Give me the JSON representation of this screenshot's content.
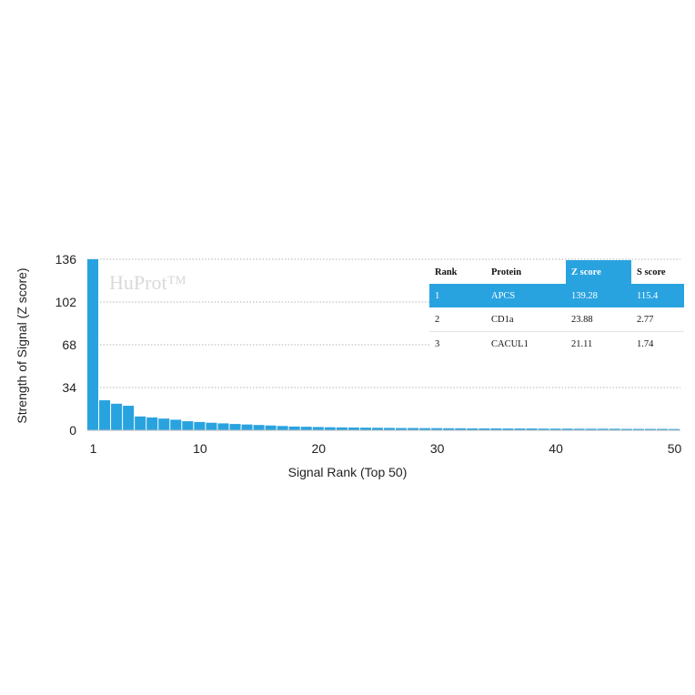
{
  "chart_data": {
    "type": "bar",
    "watermark": "HuProt™",
    "xlabel": "Signal Rank (Top 50)",
    "ylabel": "Strength of Signal (Z score)",
    "ylim": [
      0,
      136
    ],
    "yticks": [
      0,
      34,
      68,
      102,
      136
    ],
    "xticks": [
      1,
      10,
      20,
      30,
      40,
      50
    ],
    "grid": "horizontal dotted",
    "color": "#29a3e0",
    "x": [
      1,
      2,
      3,
      4,
      5,
      6,
      7,
      8,
      9,
      10,
      11,
      12,
      13,
      14,
      15,
      16,
      17,
      18,
      19,
      20,
      21,
      22,
      23,
      24,
      25,
      26,
      27,
      28,
      29,
      30,
      31,
      32,
      33,
      34,
      35,
      36,
      37,
      38,
      39,
      40,
      41,
      42,
      43,
      44,
      45,
      46,
      47,
      48,
      49,
      50
    ],
    "values": [
      139.28,
      23.88,
      21.11,
      19.5,
      11.0,
      10.2,
      9.3,
      8.4,
      7.2,
      6.6,
      6.0,
      5.5,
      5.0,
      4.6,
      4.2,
      3.8,
      3.4,
      3.0,
      2.8,
      2.6,
      2.4,
      2.3,
      2.2,
      2.1,
      2.0,
      1.9,
      1.8,
      1.8,
      1.7,
      1.7,
      1.6,
      1.6,
      1.5,
      1.5,
      1.5,
      1.4,
      1.4,
      1.4,
      1.3,
      1.3,
      1.3,
      1.2,
      1.2,
      1.2,
      1.2,
      1.1,
      1.1,
      1.1,
      1.1,
      1.0
    ]
  },
  "table": {
    "headers": [
      "Rank",
      "Protein",
      "Z score",
      "S score"
    ],
    "rows": [
      [
        "1",
        "APCS",
        "139.28",
        "115.4"
      ],
      [
        "2",
        "CD1a",
        "23.88",
        "2.77"
      ],
      [
        "3",
        "CACUL1",
        "21.11",
        "1.74"
      ]
    ]
  }
}
